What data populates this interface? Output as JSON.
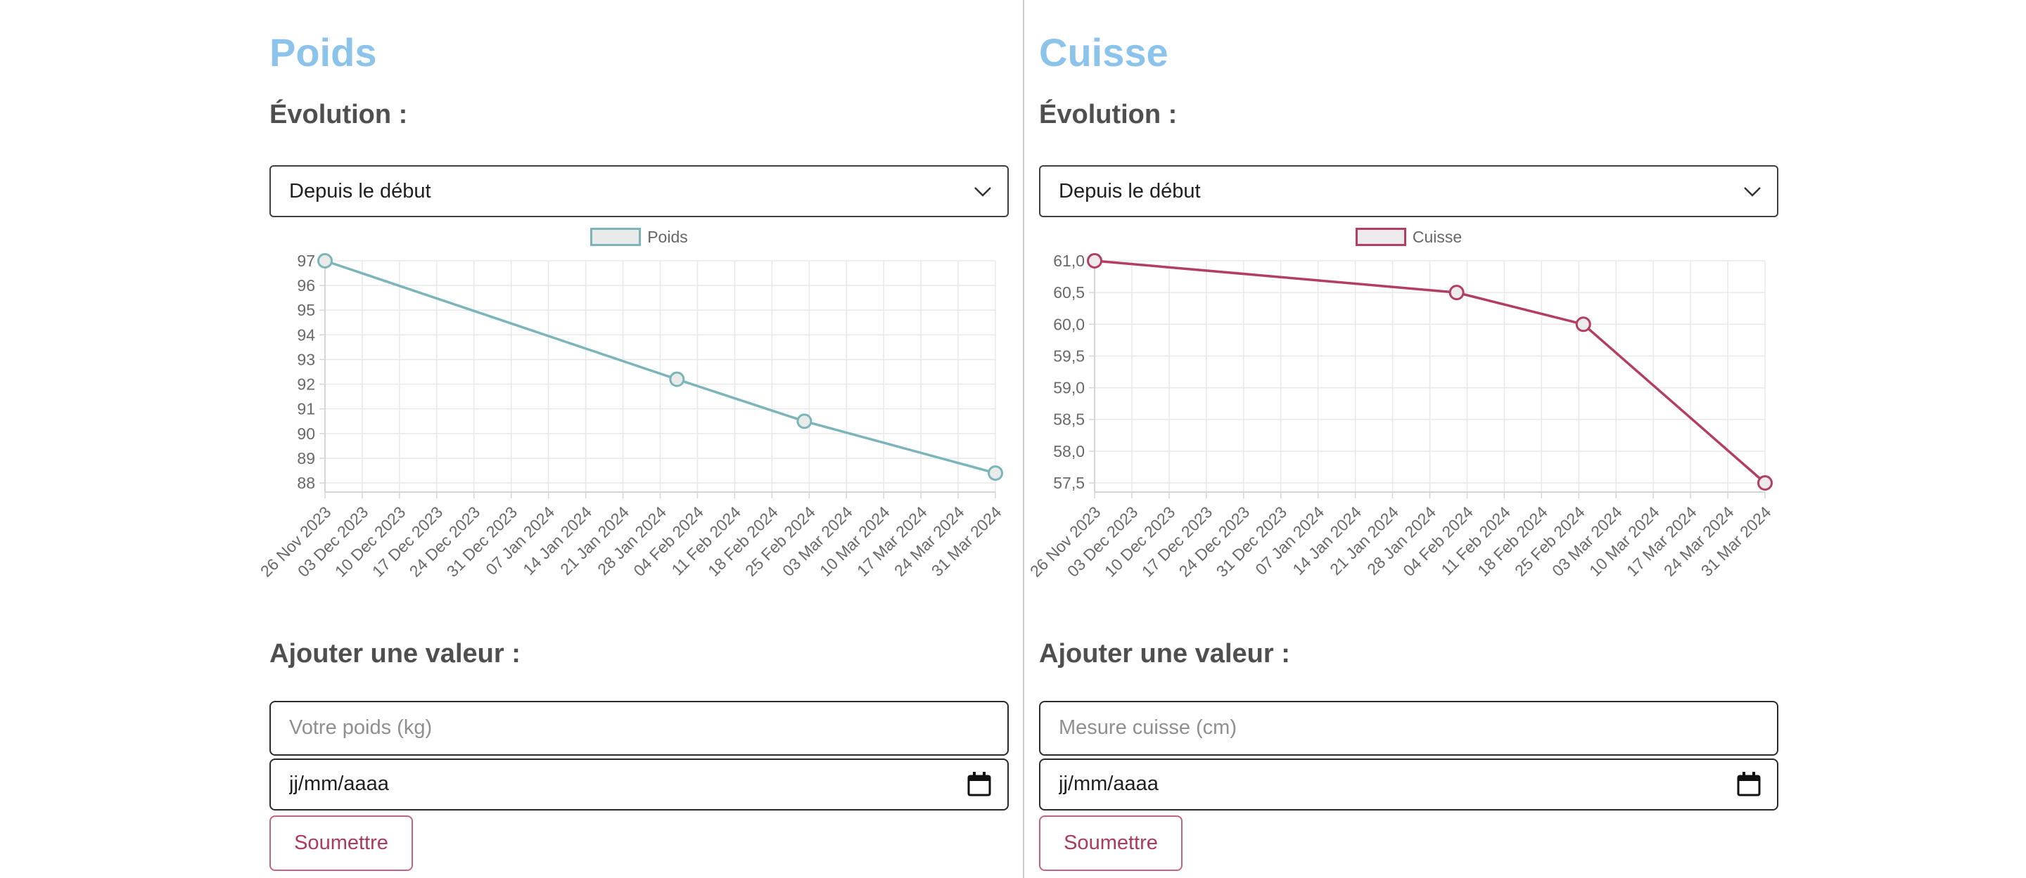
{
  "panels": [
    {
      "title": "Poids",
      "evolution_heading": "Évolution :",
      "period_select": {
        "selected": "Depuis le début"
      },
      "add_value_heading": "Ajouter une valeur :",
      "value_input": {
        "placeholder": "Votre poids (kg)",
        "value": ""
      },
      "date_input": {
        "value": "jj/mm/aaaa"
      },
      "submit_button": "Soumettre"
    },
    {
      "title": "Cuisse",
      "evolution_heading": "Évolution :",
      "period_select": {
        "selected": "Depuis le début"
      },
      "add_value_heading": "Ajouter une valeur :",
      "value_input": {
        "placeholder": "Mesure cuisse (cm)",
        "value": ""
      },
      "date_input": {
        "value": "jj/mm/aaaa"
      },
      "submit_button": "Soumettre"
    }
  ],
  "chart_data": [
    {
      "type": "line",
      "legend": "Poids",
      "line_color": "#7cb5b9",
      "point_fill": "#e9eaea",
      "legend_position": "top",
      "grid": true,
      "x_tick_labels": [
        "26 Nov 2023",
        "03 Dec 2023",
        "10 Dec 2023",
        "17 Dec 2023",
        "24 Dec 2023",
        "31 Dec 2023",
        "07 Jan 2024",
        "14 Jan 2024",
        "21 Jan 2024",
        "28 Jan 2024",
        "04 Feb 2024",
        "11 Feb 2024",
        "18 Feb 2024",
        "25 Feb 2024",
        "03 Mar 2024",
        "10 Mar 2024",
        "17 Mar 2024",
        "24 Mar 2024",
        "31 Mar 2024"
      ],
      "y_tick_labels": [
        "97",
        "96",
        "95",
        "94",
        "93",
        "92",
        "91",
        "90",
        "89",
        "88"
      ],
      "ylim": [
        88,
        97
      ],
      "points": [
        {
          "x_fraction": 0.0,
          "value": 97.0
        },
        {
          "x_fraction": 0.525,
          "value": 92.2
        },
        {
          "x_fraction": 0.715,
          "value": 90.5
        },
        {
          "x_fraction": 1.0,
          "value": 88.4
        }
      ]
    },
    {
      "type": "line",
      "legend": "Cuisse",
      "line_color": "#b23e61",
      "point_fill": "#eceaec",
      "legend_position": "top",
      "grid": true,
      "x_tick_labels": [
        "26 Nov 2023",
        "03 Dec 2023",
        "10 Dec 2023",
        "17 Dec 2023",
        "24 Dec 2023",
        "31 Dec 2023",
        "07 Jan 2024",
        "14 Jan 2024",
        "21 Jan 2024",
        "28 Jan 2024",
        "04 Feb 2024",
        "11 Feb 2024",
        "18 Feb 2024",
        "25 Feb 2024",
        "03 Mar 2024",
        "10 Mar 2024",
        "17 Mar 2024",
        "24 Mar 2024",
        "31 Mar 2024"
      ],
      "y_tick_labels": [
        "61,0",
        "60,5",
        "60,0",
        "59,5",
        "59,0",
        "58,5",
        "58,0",
        "57,5"
      ],
      "ylim": [
        57.5,
        61.0
      ],
      "points": [
        {
          "x_fraction": 0.0,
          "value": 61.0
        },
        {
          "x_fraction": 0.54,
          "value": 60.5
        },
        {
          "x_fraction": 0.729,
          "value": 60.0
        },
        {
          "x_fraction": 1.0,
          "value": 57.5
        }
      ]
    }
  ]
}
